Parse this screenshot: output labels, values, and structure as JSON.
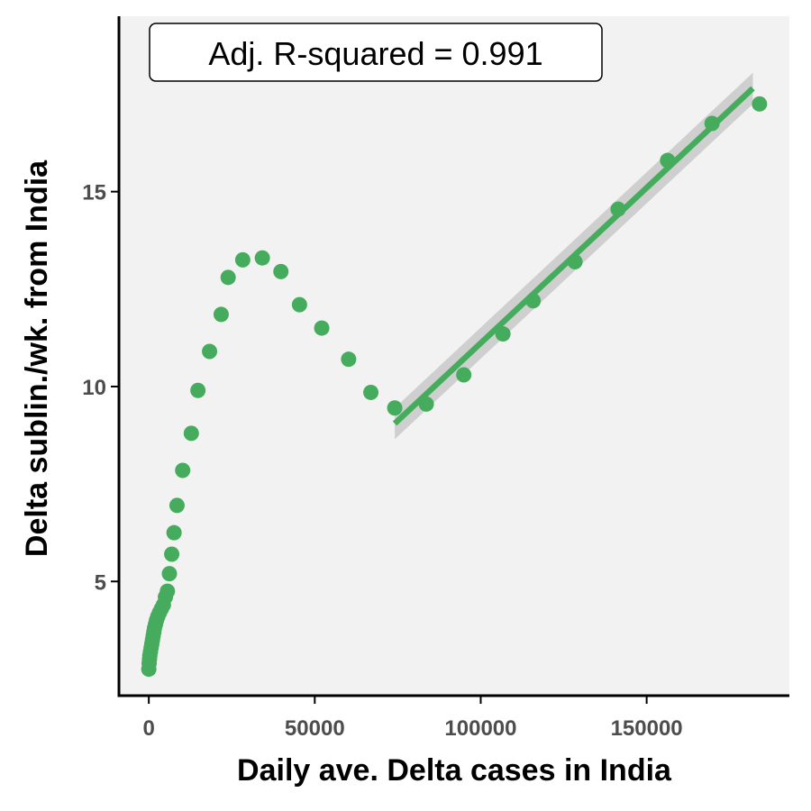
{
  "chart_data": {
    "type": "scatter",
    "xlabel": "Daily ave. Delta cases in India",
    "ylabel": "Delta sublin./wk. from India",
    "xlim": [
      -9000,
      193000
    ],
    "ylim": [
      2.07,
      19.5
    ],
    "x_ticks": [
      0,
      50000,
      100000,
      150000
    ],
    "x_tick_labels": [
      "0",
      "50000",
      "100000",
      "150000"
    ],
    "y_ticks": [
      5,
      10,
      15
    ],
    "y_tick_labels": [
      "5",
      "10",
      "15"
    ],
    "grid": false,
    "annotation": "Adj. R-squared = 0.991",
    "colors": {
      "points": "#46ac5d",
      "fit_line": "#46ac5d",
      "confidence_band": "#c9c9c9",
      "panel_background": "#f2f2f2"
    },
    "points": {
      "x": [
        0,
        100,
        200,
        300,
        500,
        700,
        900,
        1100,
        1300,
        1500,
        1700,
        2000,
        2300,
        2700,
        3200,
        3800,
        4400,
        5000,
        5600,
        6200,
        6900,
        7600,
        8500,
        10200,
        12800,
        14800,
        18300,
        21800,
        23900,
        28300,
        34200,
        39800,
        45400,
        52100,
        60200,
        66900,
        74100,
        83600,
        94900,
        106700,
        115800,
        128400,
        141400,
        156300,
        169700,
        184000
      ],
      "y": [
        2.75,
        2.9,
        3.0,
        3.1,
        3.2,
        3.3,
        3.4,
        3.5,
        3.6,
        3.7,
        3.8,
        3.9,
        4.0,
        4.1,
        4.2,
        4.3,
        4.4,
        4.6,
        4.75,
        5.2,
        5.7,
        6.25,
        6.95,
        7.85,
        8.8,
        9.9,
        10.9,
        11.85,
        12.8,
        13.25,
        13.3,
        12.95,
        12.1,
        11.5,
        10.7,
        9.85,
        9.45,
        9.55,
        10.3,
        11.35,
        12.2,
        13.2,
        14.55,
        15.8,
        16.75,
        17.25
      ]
    },
    "fit": {
      "x": [
        74100,
        182000
      ],
      "y": [
        9.05,
        17.65
      ],
      "band_halfwidth": [
        0.4,
        0.4
      ]
    }
  }
}
